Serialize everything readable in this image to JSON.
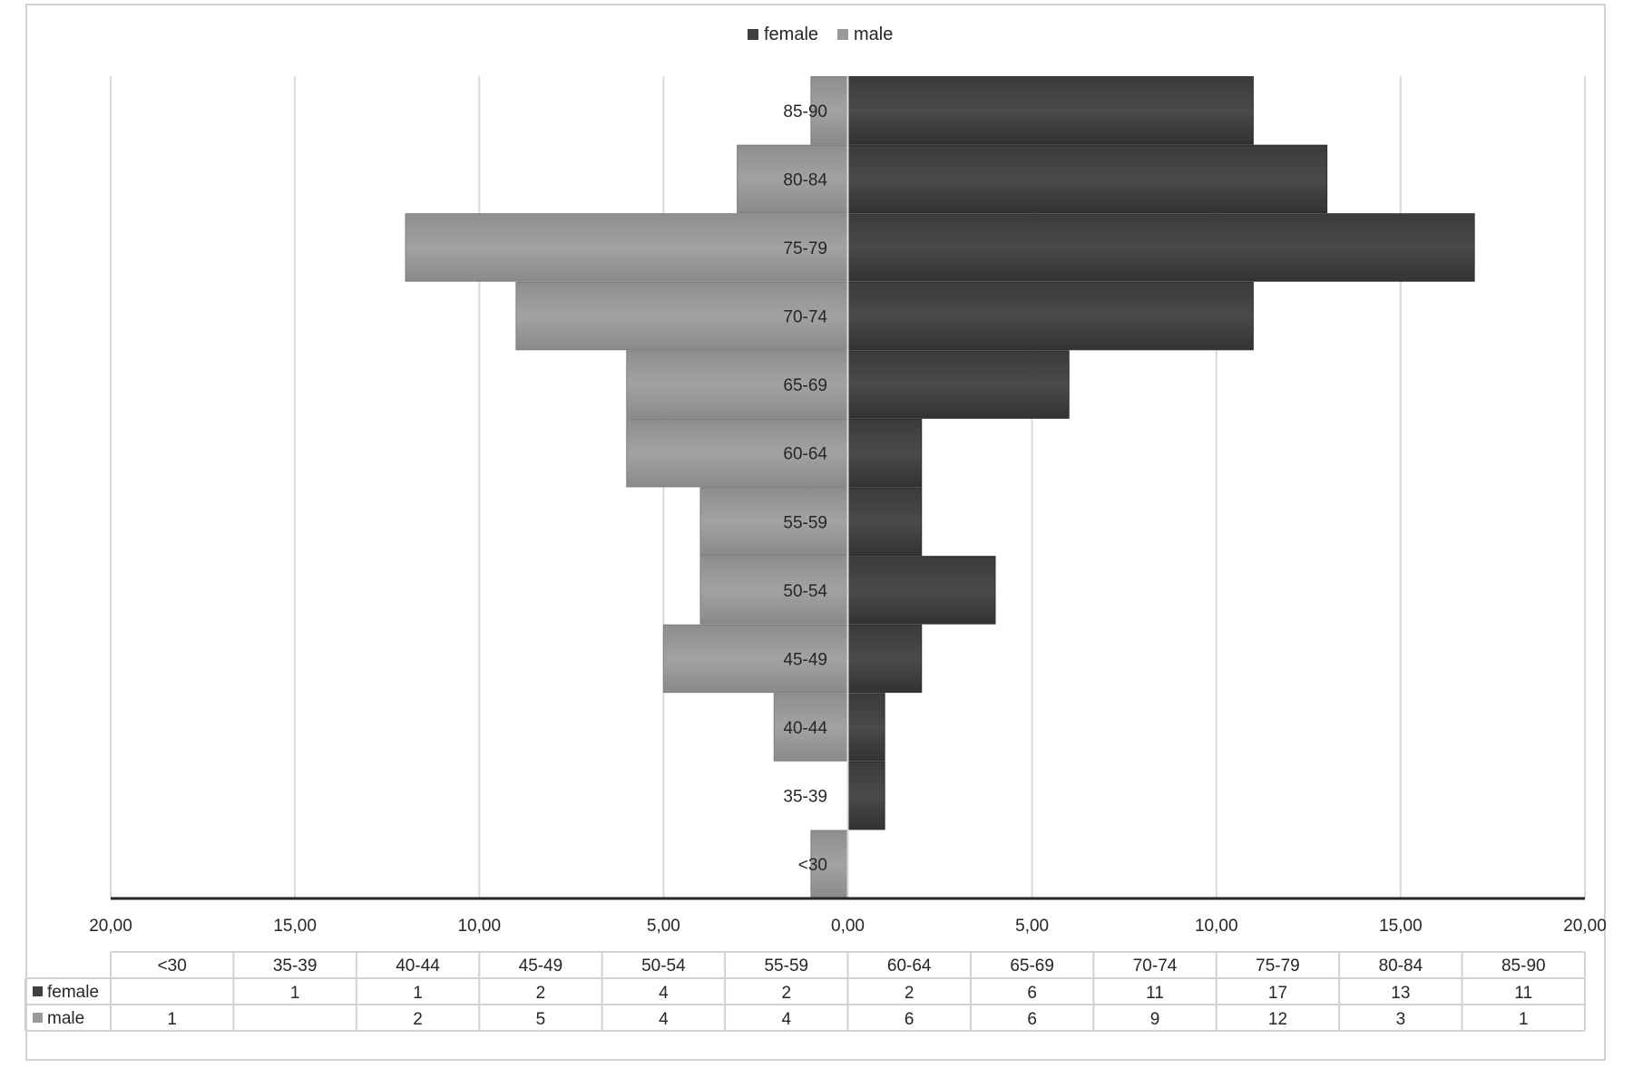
{
  "chart_data": {
    "type": "bar",
    "orientation": "horizontal",
    "layout": "population-pyramid",
    "categories": [
      "<30",
      "35-39",
      "40-44",
      "45-49",
      "50-54",
      "55-59",
      "60-64",
      "65-69",
      "70-74",
      "75-79",
      "80-84",
      "85-90"
    ],
    "series": [
      {
        "name": "female",
        "color": "#404040",
        "values": [
          null,
          1,
          1,
          2,
          4,
          2,
          2,
          6,
          11,
          17,
          13,
          11
        ]
      },
      {
        "name": "male",
        "color": "#9a9a9a",
        "values": [
          1,
          null,
          2,
          5,
          4,
          4,
          6,
          6,
          9,
          12,
          3,
          1
        ]
      }
    ],
    "xlim": [
      -20,
      20
    ],
    "x_ticks": [
      -20,
      -15,
      -10,
      -5,
      0,
      5,
      10,
      15,
      20
    ],
    "x_tick_labels": [
      "20,00",
      "15,00",
      "10,00",
      "5,00",
      "0,00",
      "5,00",
      "10,00",
      "15,00",
      "20,00"
    ],
    "grid": "vertical",
    "legend_position": "top-center",
    "data_table": true
  }
}
